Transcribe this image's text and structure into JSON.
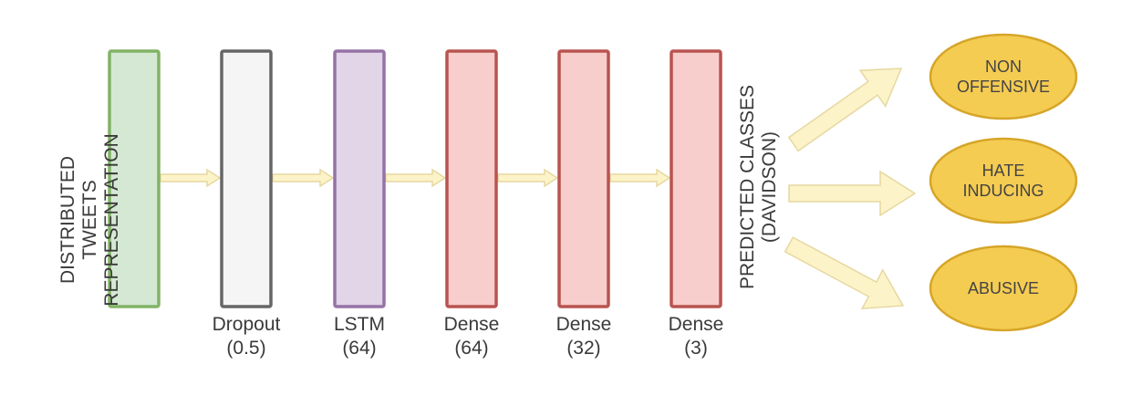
{
  "input_label": [
    "DISTRIBUTED",
    "TWEETS",
    "REPRESENTATION"
  ],
  "output_label": [
    "PREDICTED CLASSES",
    "(DAVIDSON)"
  ],
  "layers": [
    {
      "id": "input",
      "name": "",
      "param": "",
      "fill": "#d5e8d4",
      "stroke": "#82b366"
    },
    {
      "id": "dropout",
      "name": "Dropout",
      "param": "(0.5)",
      "fill": "#f5f5f5",
      "stroke": "#666666"
    },
    {
      "id": "lstm",
      "name": "LSTM",
      "param": "(64)",
      "fill": "#e1d5e7",
      "stroke": "#9673a6"
    },
    {
      "id": "dense1",
      "name": "Dense",
      "param": "(64)",
      "fill": "#f8cecc",
      "stroke": "#b85450"
    },
    {
      "id": "dense2",
      "name": "Dense",
      "param": "(32)",
      "fill": "#f8cecc",
      "stroke": "#b85450"
    },
    {
      "id": "dense3",
      "name": "Dense",
      "param": "(3)",
      "fill": "#f8cecc",
      "stroke": "#b85450"
    }
  ],
  "classes": [
    {
      "id": "non-offensive",
      "lines": [
        "NON",
        "OFFENSIVE"
      ]
    },
    {
      "id": "hate-inducing",
      "lines": [
        "HATE",
        "INDUCING"
      ]
    },
    {
      "id": "abusive",
      "lines": [
        "ABUSIVE"
      ]
    }
  ],
  "colors": {
    "arrow_fill": "#fcf3c8",
    "arrow_stroke": "#e6d8a0",
    "class_fill": "#f5cc52",
    "class_stroke": "#d6a528"
  }
}
